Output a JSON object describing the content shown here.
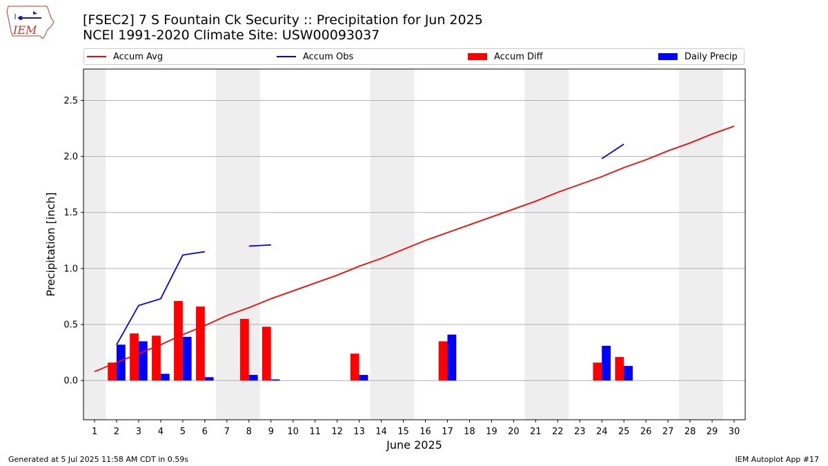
{
  "header": {
    "title_line1": "[FSEC2] 7 S Fountain Ck Security :: Precipitation for Jun 2025",
    "title_line2": "NCEI 1991-2020 Climate Site: USW00093037",
    "logo_text": "IEM"
  },
  "footer": {
    "generated": "Generated at 5 Jul 2025 11:58 AM CDT in 0.59s",
    "app": "IEM Autoplot App #17"
  },
  "colors": {
    "avg": "#ff0000",
    "obs": "#0000ff",
    "diff": "#ff0000",
    "daily": "#0000ff",
    "weekend": "#eeeeee",
    "grid": "#b0b0b0"
  },
  "chart_data": {
    "type": "bar",
    "xlabel": "June 2025",
    "ylabel": "Precipitation [inch]",
    "ylim": [
      -0.35,
      2.78
    ],
    "yticks": [
      0.0,
      0.5,
      1.0,
      1.5,
      2.0,
      2.5
    ],
    "ytick_labels": [
      "0.0",
      "0.5",
      "1.0",
      "1.5",
      "2.0",
      "2.5"
    ],
    "xlim": [
      0.5,
      30.5
    ],
    "days": [
      1,
      2,
      3,
      4,
      5,
      6,
      7,
      8,
      9,
      10,
      11,
      12,
      13,
      14,
      15,
      16,
      17,
      18,
      19,
      20,
      21,
      22,
      23,
      24,
      25,
      26,
      27,
      28,
      29,
      30
    ],
    "day_labels": [
      "1",
      "2",
      "3",
      "4",
      "5",
      "6",
      "7",
      "8",
      "9",
      "10",
      "11",
      "12",
      "13",
      "14",
      "15",
      "16",
      "17",
      "18",
      "19",
      "20",
      "21",
      "22",
      "23",
      "24",
      "25",
      "26",
      "27",
      "28",
      "29",
      "30"
    ],
    "weekend_spans": [
      [
        0.5,
        1.5
      ],
      [
        6.5,
        8.5
      ],
      [
        13.5,
        15.5
      ],
      [
        20.5,
        22.5
      ],
      [
        27.5,
        29.5
      ]
    ],
    "grid": true,
    "legend_position": "top",
    "series": [
      {
        "name": "Accum Avg",
        "kind": "line",
        "values": [
          0.08,
          0.16,
          0.24,
          0.32,
          0.41,
          0.49,
          0.58,
          0.65,
          0.73,
          0.8,
          0.87,
          0.94,
          1.02,
          1.09,
          1.17,
          1.25,
          1.32,
          1.39,
          1.46,
          1.53,
          1.6,
          1.68,
          1.75,
          1.82,
          1.9,
          1.97,
          2.05,
          2.12,
          2.2,
          2.27
        ]
      },
      {
        "name": "Accum Obs",
        "kind": "line",
        "values": [
          null,
          0.32,
          0.67,
          0.73,
          1.12,
          1.15,
          null,
          1.2,
          1.21,
          null,
          null,
          null,
          null,
          null,
          null,
          null,
          null,
          null,
          null,
          null,
          null,
          null,
          null,
          1.98,
          2.11,
          null,
          null,
          null,
          null,
          null
        ]
      },
      {
        "name": "Accum Diff",
        "kind": "bar",
        "values": [
          0,
          0.16,
          0.42,
          0.4,
          0.71,
          0.66,
          0,
          0.55,
          0.48,
          0,
          0,
          0,
          0.24,
          0,
          0,
          0,
          0.35,
          0,
          0,
          0,
          0,
          0,
          0,
          0.16,
          0.21,
          0,
          0,
          0,
          0,
          0
        ]
      },
      {
        "name": "Daily Precip",
        "kind": "bar",
        "values": [
          0,
          0.32,
          0.35,
          0.06,
          0.39,
          0.03,
          0,
          0.05,
          0.01,
          0,
          0,
          0,
          0.05,
          0,
          0,
          0,
          0.41,
          0,
          0,
          0,
          0,
          0,
          0,
          0.31,
          0.13,
          0,
          0,
          0,
          0,
          0
        ]
      }
    ]
  }
}
